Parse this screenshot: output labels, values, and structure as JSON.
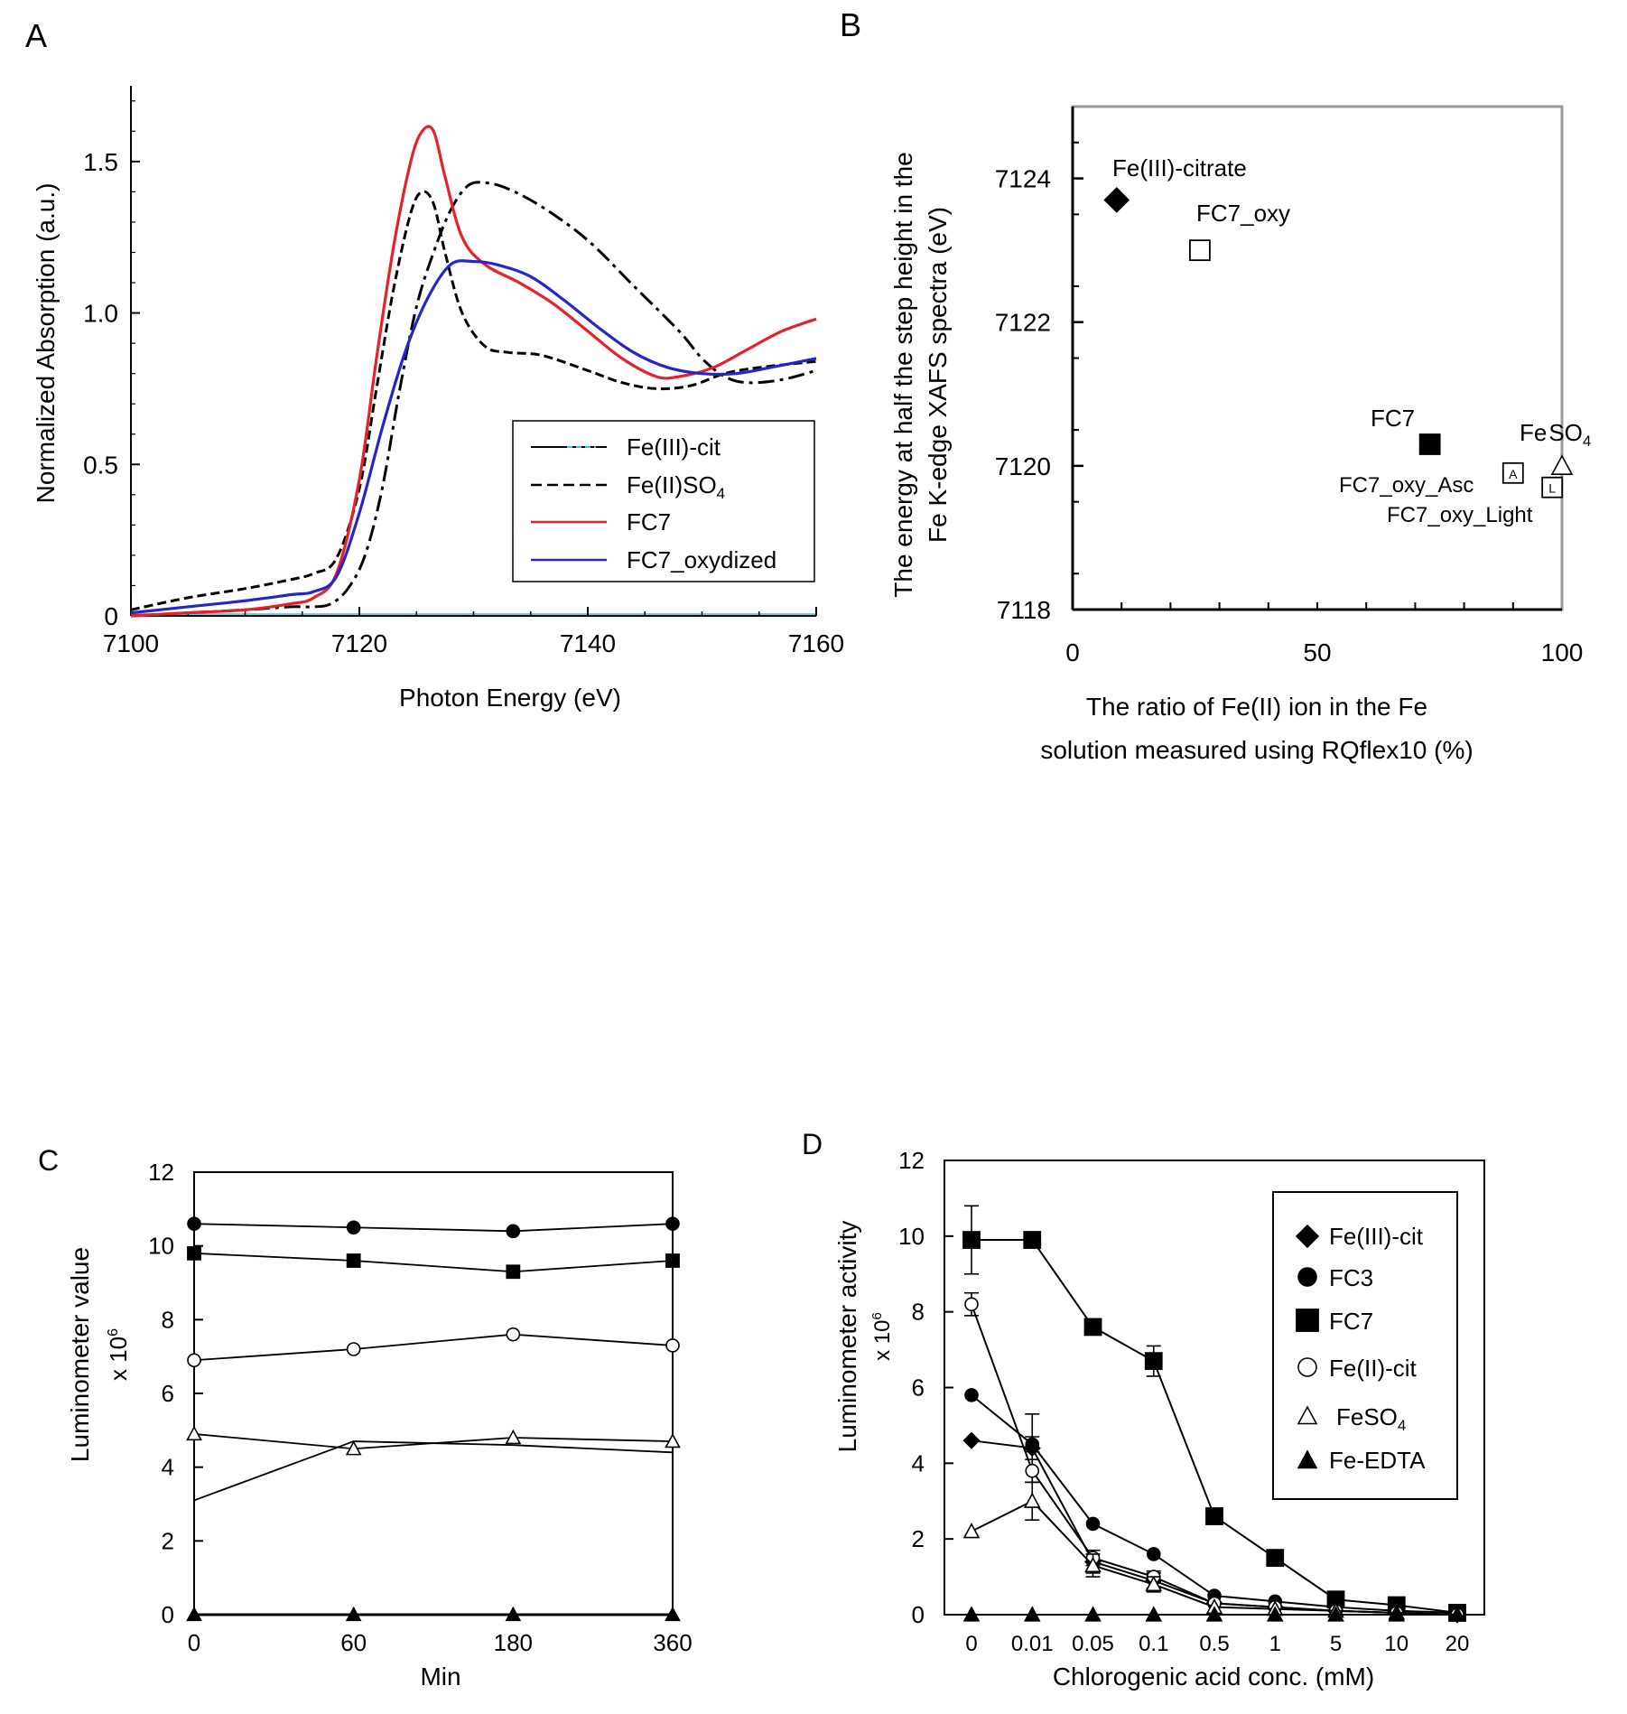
{
  "chart_data": [
    {
      "panel": "A",
      "type": "line",
      "xlabel": "Photon Energy (eV)",
      "ylabel": "Normalized Absorption (a.u.)",
      "xlim": [
        7100,
        7160
      ],
      "ylim": [
        0,
        1.75
      ],
      "xticks": [
        "7100",
        "7120",
        "7140",
        "7160"
      ],
      "yticks": [
        "0",
        "0.5",
        "1.0",
        "1.5"
      ],
      "legend": [
        "Fe(III)-cit",
        "Fe(II)SO4",
        "FC7",
        "FC7_oxydized"
      ],
      "series": [
        {
          "name": "Fe(III)-cit",
          "color": "#000000",
          "dash": "dashdot",
          "x": [
            7100,
            7105,
            7110,
            7114,
            7116,
            7117.5,
            7119,
            7120.5,
            7122,
            7123.5,
            7125,
            7126.5,
            7128,
            7129.5,
            7131,
            7133,
            7136,
            7140,
            7144,
            7148,
            7150,
            7152,
            7154,
            7157,
            7160
          ],
          "y": [
            0.0,
            0.01,
            0.02,
            0.03,
            0.03,
            0.04,
            0.09,
            0.2,
            0.42,
            0.74,
            1.02,
            1.2,
            1.34,
            1.42,
            1.43,
            1.41,
            1.35,
            1.24,
            1.09,
            0.94,
            0.85,
            0.79,
            0.77,
            0.78,
            0.81
          ]
        },
        {
          "name": "Fe(II)SO4",
          "color": "#000000",
          "dash": "dashed",
          "x": [
            7100,
            7105,
            7110,
            7114,
            7116,
            7118,
            7120,
            7121.5,
            7123,
            7124.5,
            7125.5,
            7126.5,
            7127.5,
            7129,
            7131,
            7133,
            7136,
            7140,
            7143,
            7146,
            7149,
            7152,
            7155,
            7160
          ],
          "y": [
            0.02,
            0.06,
            0.09,
            0.12,
            0.14,
            0.19,
            0.42,
            0.75,
            1.08,
            1.33,
            1.4,
            1.36,
            1.2,
            1.0,
            0.89,
            0.87,
            0.86,
            0.81,
            0.77,
            0.75,
            0.76,
            0.8,
            0.82,
            0.84
          ]
        },
        {
          "name": "FC7",
          "color": "#e8202a",
          "dash": "solid",
          "x": [
            7100,
            7105,
            7110,
            7114,
            7116,
            7118,
            7120,
            7121.5,
            7123,
            7124.5,
            7125.5,
            7126.5,
            7127.5,
            7129,
            7131,
            7134,
            7137,
            7140,
            7143,
            7146,
            7148,
            7151,
            7154,
            7157,
            7160
          ],
          "y": [
            0.0,
            0.01,
            0.02,
            0.04,
            0.06,
            0.14,
            0.45,
            0.85,
            1.22,
            1.5,
            1.6,
            1.6,
            1.45,
            1.25,
            1.16,
            1.1,
            1.03,
            0.94,
            0.85,
            0.79,
            0.79,
            0.82,
            0.88,
            0.94,
            0.98
          ]
        },
        {
          "name": "FC7_oxydized",
          "color": "#2626c8",
          "dash": "solid",
          "x": [
            7100,
            7105,
            7110,
            7114,
            7116,
            7118,
            7120,
            7122,
            7124,
            7126,
            7128,
            7130,
            7132,
            7135,
            7138,
            7141,
            7144,
            7147,
            7150,
            7153,
            7156,
            7160
          ],
          "y": [
            0.01,
            0.03,
            0.05,
            0.07,
            0.08,
            0.13,
            0.34,
            0.62,
            0.87,
            1.05,
            1.16,
            1.17,
            1.16,
            1.12,
            1.04,
            0.95,
            0.87,
            0.82,
            0.8,
            0.8,
            0.82,
            0.85
          ]
        }
      ]
    },
    {
      "panel": "B",
      "type": "scatter",
      "xlabel": [
        "The ratio of Fe(II) ion in the Fe",
        "solution measured using RQflex10 (%)"
      ],
      "ylabel": [
        "The energy at half the step height in the",
        "Fe K-edge XAFS spectra (eV)"
      ],
      "xlim": [
        0,
        100
      ],
      "ylim": [
        7118,
        7125
      ],
      "xticks": [
        "0",
        "50",
        "100"
      ],
      "yticks": [
        "7118",
        "7120",
        "7122",
        "7124"
      ],
      "points": [
        {
          "name": "Fe(III)-citrate",
          "x": 9,
          "y": 7123.7,
          "marker": "diamond-filled"
        },
        {
          "name": "FC7_oxy",
          "x": 26,
          "y": 7123.0,
          "marker": "square-open"
        },
        {
          "name": "FC7",
          "x": 73,
          "y": 7120.3,
          "marker": "square-filled"
        },
        {
          "name": "FC7_oxy_Asc",
          "x": 90,
          "y": 7119.9,
          "marker": "square-open",
          "letter": "A"
        },
        {
          "name": "FC7_oxy_Light",
          "x": 98,
          "y": 7119.7,
          "marker": "square-open",
          "letter": "L"
        },
        {
          "name": "FeSO4",
          "x": 100,
          "y": 7120.0,
          "marker": "triangle-open"
        }
      ]
    },
    {
      "panel": "C",
      "type": "line",
      "xlabel": "Min",
      "ylabel": [
        "Luminometer value",
        "x 10^6"
      ],
      "categories": [
        "0",
        "60",
        "180",
        "360"
      ],
      "ylim": [
        0,
        12
      ],
      "yticks": [
        "0",
        "2",
        "4",
        "6",
        "8",
        "10",
        "12"
      ],
      "series": [
        {
          "name": "FC3",
          "marker": "circle-filled",
          "values": [
            10.6,
            10.5,
            10.4,
            10.6
          ]
        },
        {
          "name": "FC7",
          "marker": "square-filled",
          "values": [
            9.8,
            9.6,
            9.3,
            9.6
          ]
        },
        {
          "name": "Fe(II)-cit",
          "marker": "circle-open",
          "values": [
            6.9,
            7.2,
            7.6,
            7.3
          ]
        },
        {
          "name": "FeSO4",
          "marker": "triangle-open",
          "values": [
            4.9,
            4.5,
            4.8,
            4.7
          ]
        },
        {
          "name": "Fe(III)-cit",
          "marker": "none",
          "values": [
            3.1,
            4.7,
            4.6,
            4.4
          ]
        },
        {
          "name": "Fe-EDTA",
          "marker": "triangle-filled",
          "values": [
            0,
            0,
            0,
            0
          ]
        }
      ]
    },
    {
      "panel": "D",
      "type": "line",
      "xlabel": "Chlorogenic acid conc. (mM)",
      "ylabel": [
        "Luminometer activity",
        "x 10^6"
      ],
      "categories": [
        "0",
        "0.01",
        "0.05",
        "0.1",
        "0.5",
        "1",
        "5",
        "10",
        "20"
      ],
      "ylim": [
        0,
        12
      ],
      "yticks": [
        "0",
        "2",
        "4",
        "6",
        "8",
        "10",
        "12"
      ],
      "legend": [
        "Fe(III)-cit",
        "FC3",
        "FC7",
        "Fe(II)-cit",
        "FeSO4",
        "Fe-EDTA"
      ],
      "series": [
        {
          "name": "Fe(III)-cit",
          "marker": "diamond-filled",
          "values": [
            4.6,
            4.4,
            1.4,
            0.9,
            0.3,
            0.2,
            0.1,
            0.05,
            0.0
          ]
        },
        {
          "name": "FC3",
          "marker": "circle-filled",
          "values": [
            5.8,
            4.5,
            2.4,
            1.6,
            0.5,
            0.35,
            0.2,
            0.1,
            0.05
          ]
        },
        {
          "name": "FC7",
          "marker": "square-filled",
          "values": [
            9.9,
            9.9,
            7.6,
            6.7,
            2.6,
            1.5,
            0.4,
            0.25,
            0.05
          ]
        },
        {
          "name": "Fe(II)-cit",
          "marker": "circle-open",
          "values": [
            8.2,
            3.8,
            1.5,
            1.0,
            0.3,
            0.2,
            0.1,
            0.05,
            0.0
          ]
        },
        {
          "name": "FeSO4",
          "marker": "triangle-open",
          "values": [
            2.2,
            3.0,
            1.3,
            0.8,
            0.2,
            0.15,
            0.1,
            0.05,
            0.0
          ]
        },
        {
          "name": "Fe-EDTA",
          "marker": "triangle-filled",
          "values": [
            0,
            0,
            0,
            0,
            0,
            0,
            0,
            0,
            0
          ]
        }
      ]
    }
  ],
  "labels": {
    "panel_a": "A",
    "panel_b": "B",
    "panel_c": "C",
    "panel_d": "D",
    "subscript_4": "4",
    "superscript_6": "6",
    "fe": "Fe",
    "so": "SO",
    "feii": "Fe(II)SO",
    "x10": "x 10",
    "lum_value": "Luminometer  value",
    "lum_activity": "Luminometer activity"
  }
}
